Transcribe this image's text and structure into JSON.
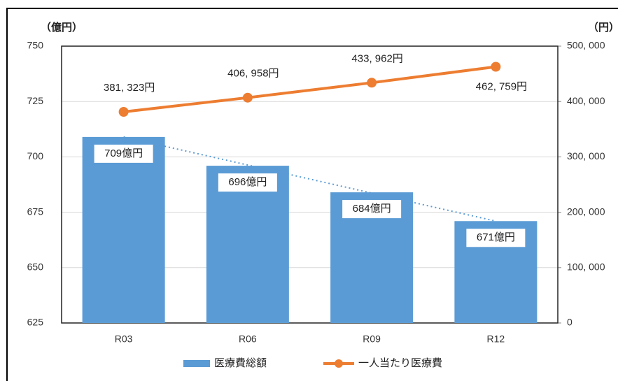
{
  "chart_data": {
    "type": "combo",
    "y_label": "（億円）",
    "y2_label": "（円）",
    "categories": [
      "R03",
      "R06",
      "R09",
      "R12"
    ],
    "series": [
      {
        "name": "医療費総額",
        "type": "bar",
        "color": "#5b9bd5",
        "values": [
          709,
          696,
          684,
          671
        ],
        "value_labels": [
          "709億円",
          "696億円",
          "684億円",
          "671億円"
        ]
      },
      {
        "name": "一人当たり医療費",
        "type": "line",
        "axis": "y2",
        "color": "#ed7d31",
        "values": [
          381323,
          406958,
          433962,
          462759
        ],
        "value_labels": [
          "381, 323円",
          "406, 958円",
          "433, 962円",
          "462, 759円"
        ]
      }
    ],
    "ylim": [
      625,
      750
    ],
    "yticks": [
      625,
      650,
      675,
      700,
      725,
      750
    ],
    "y2lim": [
      0,
      500000
    ],
    "y2ticks": [
      0,
      {
        "value": 100000,
        "label": "100, 000"
      },
      {
        "value": 200000,
        "label": "200, 000"
      },
      {
        "value": 300000,
        "label": "300, 000"
      },
      {
        "value": 400000,
        "label": "400, 000"
      },
      {
        "value": 500000,
        "label": "500, 000"
      }
    ],
    "grid": true
  }
}
